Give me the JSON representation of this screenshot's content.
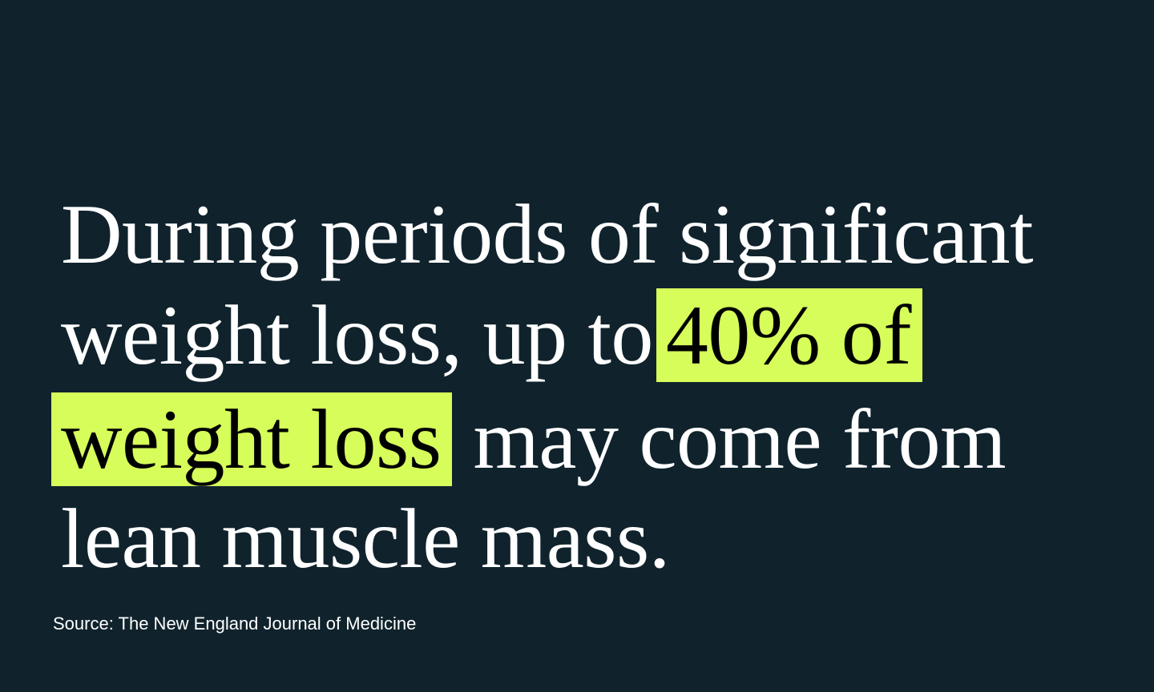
{
  "quote": {
    "line1": "During periods of significant",
    "line2_plain": "weight loss, up to",
    "line2_highlight": "40% of",
    "line3_highlight": "weight loss",
    "line3_plain": " may come from",
    "line4": "lean muscle mass."
  },
  "source": "Source: The New England Journal of Medicine",
  "colors": {
    "background": "#10232d",
    "highlight": "#d6fd5a",
    "text": "#ffffff"
  }
}
